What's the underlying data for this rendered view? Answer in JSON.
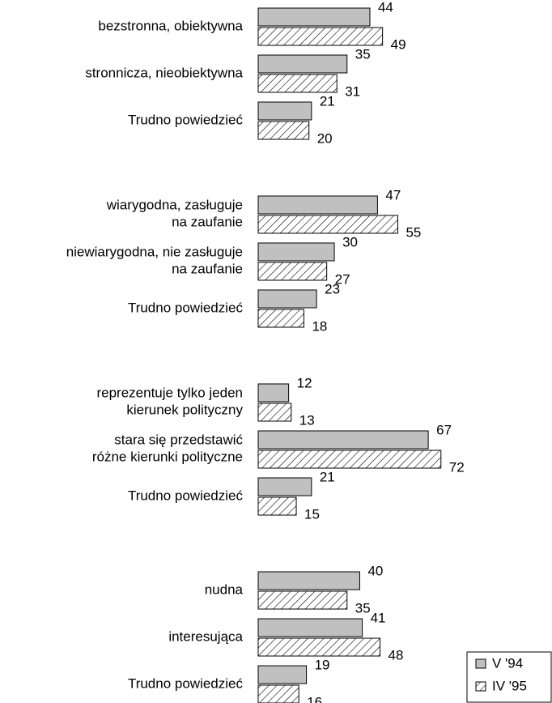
{
  "chart_data": {
    "type": "hbar",
    "categories": [
      "bezstronna, obiektywna",
      "stronnicza, nieobiektywna",
      "Trudno powiedzieć",
      "wiarygodna, zasługuje\nna zaufanie",
      "niewiarygodna, nie zasługuje\nna zaufanie",
      "Trudno powiedzieć",
      "reprezentuje tylko jeden\nkierunek polityczny",
      "stara się przedstawić\nróżne kierunki polityczne",
      "Trudno powiedzieć",
      "nudna",
      "interesująca",
      "Trudno powiedzieć"
    ],
    "series": [
      {
        "name": "V '94",
        "color": "#c0c0c0",
        "hatch": false,
        "values": [
          44,
          35,
          21,
          47,
          30,
          23,
          12,
          67,
          21,
          40,
          41,
          19
        ]
      },
      {
        "name": "IV '95",
        "color": "#ffffff",
        "hatch": true,
        "values": [
          49,
          31,
          20,
          55,
          27,
          18,
          13,
          72,
          15,
          35,
          48,
          16
        ]
      }
    ],
    "xlim": [
      0,
      100
    ],
    "legend": "bottom-right"
  }
}
